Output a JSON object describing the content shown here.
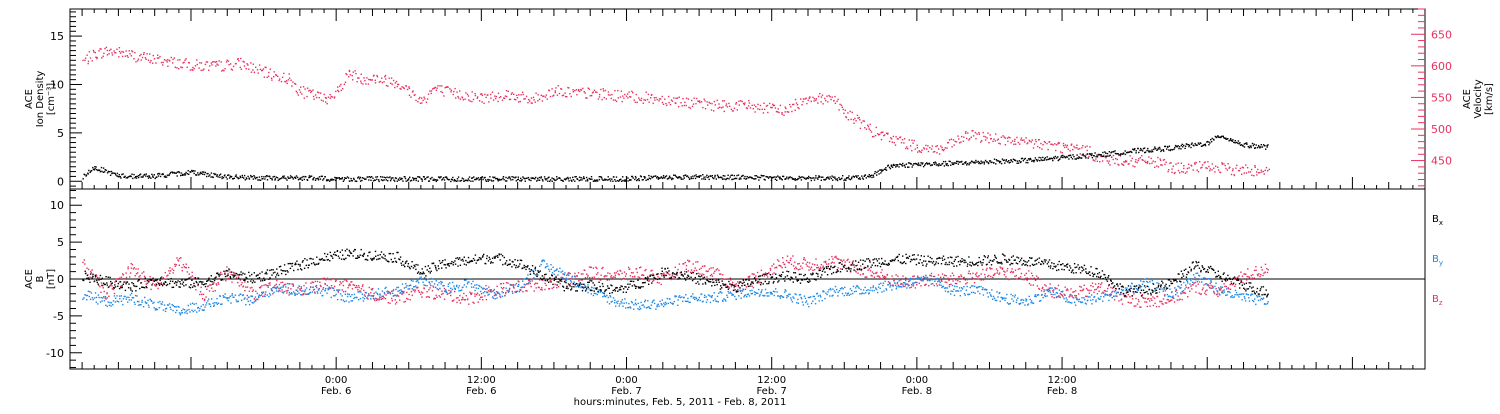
{
  "chart_data": [
    {
      "type": "scatter",
      "panel": "top",
      "ylabel_left": [
        "ACE",
        "Ion Density",
        "[cm⁻³]"
      ],
      "ylabel_right": [
        "ACE",
        "Velocity",
        "[km/s]"
      ],
      "ylim_left": [
        -0.8,
        17.8
      ],
      "yticks_left": [
        0,
        5,
        10,
        15
      ],
      "ylim_right": [
        405,
        690
      ],
      "yticks_right": [
        450,
        500,
        550,
        600,
        650
      ],
      "grid": false,
      "colors": {
        "density": "#000000",
        "velocity": "#e8305f"
      },
      "series": [
        {
          "axis": "left",
          "color": "#000000",
          "points": [
            [
              -21,
              0.5
            ],
            [
              -20,
              1.5
            ],
            [
              -18,
              0.6
            ],
            [
              -15,
              0.6
            ],
            [
              -12,
              1.0
            ],
            [
              -9,
              0.5
            ],
            [
              -6,
              0.4
            ],
            [
              -3,
              0.4
            ],
            [
              0,
              0.3
            ],
            [
              3,
              0.3
            ],
            [
              6,
              0.3
            ],
            [
              9,
              0.3
            ],
            [
              12,
              0.3
            ],
            [
              15,
              0.3
            ],
            [
              18,
              0.3
            ],
            [
              21,
              0.3
            ],
            [
              24,
              0.3
            ],
            [
              27,
              0.5
            ],
            [
              30,
              0.5
            ],
            [
              33,
              0.5
            ],
            [
              36,
              0.4
            ],
            [
              39,
              0.4
            ],
            [
              42,
              0.4
            ],
            [
              44,
              0.5
            ],
            [
              45,
              1.2
            ],
            [
              46,
              1.7
            ],
            [
              48,
              1.8
            ],
            [
              51,
              1.9
            ],
            [
              54,
              2.1
            ],
            [
              57,
              2.2
            ],
            [
              60,
              2.5
            ],
            [
              63,
              2.8
            ],
            [
              66,
              3.2
            ],
            [
              69,
              3.5
            ],
            [
              72,
              4.0
            ],
            [
              73,
              4.8
            ],
            [
              75,
              3.8
            ],
            [
              77,
              3.6
            ]
          ]
        },
        {
          "axis": "right",
          "color": "#e8305f",
          "points": [
            [
              -21,
              608
            ],
            [
              -20,
              620
            ],
            [
              -19,
              624
            ],
            [
              -18,
              622
            ],
            [
              -17,
              618
            ],
            [
              -16,
              614
            ],
            [
              -14,
              608
            ],
            [
              -12,
              602
            ],
            [
              -10,
              600
            ],
            [
              -8,
              605
            ],
            [
              -6,
              590
            ],
            [
              -4,
              580
            ],
            [
              -3,
              560
            ],
            [
              -2,
              555
            ],
            [
              -1,
              548
            ],
            [
              0,
              560
            ],
            [
              1,
              590
            ],
            [
              2,
              580
            ],
            [
              3,
              582
            ],
            [
              4,
              578
            ],
            [
              5,
              575
            ],
            [
              6,
              560
            ],
            [
              7,
              545
            ],
            [
              8,
              565
            ],
            [
              9,
              560
            ],
            [
              10,
              556
            ],
            [
              12,
              550
            ],
            [
              14,
              556
            ],
            [
              15,
              552
            ],
            [
              16,
              546
            ],
            [
              18,
              562
            ],
            [
              20,
              558
            ],
            [
              22,
              556
            ],
            [
              24,
              552
            ],
            [
              26,
              550
            ],
            [
              28,
              546
            ],
            [
              30,
              540
            ],
            [
              32,
              538
            ],
            [
              34,
              538
            ],
            [
              36,
              532
            ],
            [
              37,
              530
            ],
            [
              38,
              540
            ],
            [
              39,
              552
            ],
            [
              40,
              548
            ],
            [
              41,
              552
            ],
            [
              42,
              525
            ],
            [
              43,
              515
            ],
            [
              44,
              500
            ],
            [
              45,
              490
            ],
            [
              46,
              485
            ],
            [
              48,
              472
            ],
            [
              50,
              468
            ],
            [
              52,
              490
            ],
            [
              54,
              488
            ],
            [
              56,
              480
            ],
            [
              58,
              478
            ],
            [
              60,
              472
            ],
            [
              62,
              466
            ],
            [
              63,
              455
            ],
            [
              64,
              450
            ],
            [
              65,
              452
            ],
            [
              66,
              448
            ],
            [
              67,
              452
            ],
            [
              68,
              446
            ],
            [
              69,
              440
            ],
            [
              70,
              438
            ],
            [
              72,
              442
            ],
            [
              74,
              436
            ],
            [
              76,
              436
            ],
            [
              77,
              438
            ]
          ]
        }
      ]
    },
    {
      "type": "scatter",
      "panel": "bottom",
      "ylabel": [
        "ACE",
        "B",
        "[nT]"
      ],
      "ylim": [
        -12.2,
        12.2
      ],
      "yticks": [
        -10,
        -5,
        0,
        5,
        10
      ],
      "zero_line": true,
      "grid": false,
      "series": [
        {
          "legend": "B",
          "sub": "x",
          "color": "#000000",
          "points": [
            [
              -21,
              0.5
            ],
            [
              -19,
              -0.3
            ],
            [
              -17,
              -1.0
            ],
            [
              -15,
              0.0
            ],
            [
              -13,
              -0.6
            ],
            [
              -11,
              -0.3
            ],
            [
              -9,
              0.8
            ],
            [
              -7,
              0.2
            ],
            [
              -5,
              1.0
            ],
            [
              -3,
              2.0
            ],
            [
              -1,
              3.0
            ],
            [
              1,
              3.5
            ],
            [
              3,
              3.3
            ],
            [
              5,
              3.0
            ],
            [
              7,
              1.0
            ],
            [
              9,
              2.2
            ],
            [
              11,
              2.6
            ],
            [
              13,
              3.0
            ],
            [
              15,
              2.2
            ],
            [
              17,
              0.5
            ],
            [
              19,
              -1.0
            ],
            [
              21,
              -0.8
            ],
            [
              23,
              -1.5
            ],
            [
              25,
              -0.5
            ],
            [
              27,
              1.0
            ],
            [
              29,
              0.5
            ],
            [
              31,
              -0.5
            ],
            [
              33,
              -1.0
            ],
            [
              35,
              0.0
            ],
            [
              37,
              0.5
            ],
            [
              39,
              0.0
            ],
            [
              41,
              1.5
            ],
            [
              43,
              2.0
            ],
            [
              45,
              2.5
            ],
            [
              47,
              2.8
            ],
            [
              49,
              2.5
            ],
            [
              51,
              2.5
            ],
            [
              53,
              2.5
            ],
            [
              55,
              2.8
            ],
            [
              57,
              2.5
            ],
            [
              59,
              2.0
            ],
            [
              61,
              1.5
            ],
            [
              63,
              1.0
            ],
            [
              65,
              -1.5
            ],
            [
              67,
              -1.5
            ],
            [
              69,
              -0.5
            ],
            [
              71,
              2.0
            ],
            [
              73,
              0.5
            ],
            [
              75,
              -0.8
            ],
            [
              77,
              -1.8
            ]
          ]
        },
        {
          "legend": "B",
          "sub": "y",
          "color": "#1e88e5",
          "points": [
            [
              -21,
              -2.0
            ],
            [
              -19,
              -3.0
            ],
            [
              -17,
              -2.5
            ],
            [
              -15,
              -3.5
            ],
            [
              -13,
              -4.3
            ],
            [
              -11,
              -3.5
            ],
            [
              -9,
              -2.5
            ],
            [
              -7,
              -2.8
            ],
            [
              -5,
              -1.0
            ],
            [
              -3,
              -1.5
            ],
            [
              -1,
              -1.5
            ],
            [
              1,
              -2.5
            ],
            [
              3,
              -2.0
            ],
            [
              5,
              -1.5
            ],
            [
              7,
              0.0
            ],
            [
              9,
              -1.2
            ],
            [
              11,
              -0.5
            ],
            [
              13,
              -2.0
            ],
            [
              15,
              -1.0
            ],
            [
              17,
              2.0
            ],
            [
              19,
              0.5
            ],
            [
              21,
              -1.5
            ],
            [
              23,
              -3.0
            ],
            [
              25,
              -3.5
            ],
            [
              27,
              -3.2
            ],
            [
              29,
              -2.5
            ],
            [
              31,
              -2.5
            ],
            [
              33,
              -2.0
            ],
            [
              35,
              -1.5
            ],
            [
              37,
              -2.0
            ],
            [
              39,
              -3.0
            ],
            [
              41,
              -1.5
            ],
            [
              43,
              -1.5
            ],
            [
              45,
              -1.0
            ],
            [
              47,
              -0.5
            ],
            [
              49,
              0.0
            ],
            [
              51,
              -1.5
            ],
            [
              53,
              -1.5
            ],
            [
              55,
              -2.5
            ],
            [
              57,
              -3.0
            ],
            [
              59,
              -1.5
            ],
            [
              61,
              -3.0
            ],
            [
              63,
              -2.5
            ],
            [
              65,
              -1.5
            ],
            [
              67,
              -0.5
            ],
            [
              69,
              -2.0
            ],
            [
              71,
              0.5
            ],
            [
              73,
              -1.5
            ],
            [
              75,
              -2.5
            ],
            [
              77,
              -3.0
            ]
          ]
        },
        {
          "legend": "B",
          "sub": "z",
          "color": "#e8305f",
          "points": [
            [
              -21,
              2.0
            ],
            [
              -19,
              -2.0
            ],
            [
              -17,
              1.5
            ],
            [
              -15,
              -1.0
            ],
            [
              -13,
              2.5
            ],
            [
              -11,
              -2.0
            ],
            [
              -9,
              1.0
            ],
            [
              -7,
              -2.0
            ],
            [
              -5,
              -1.0
            ],
            [
              -3,
              -1.5
            ],
            [
              -1,
              -0.5
            ],
            [
              1,
              -1.0
            ],
            [
              3,
              -2.0
            ],
            [
              5,
              -2.5
            ],
            [
              7,
              -1.5
            ],
            [
              9,
              -2.0
            ],
            [
              11,
              -2.5
            ],
            [
              13,
              -1.5
            ],
            [
              15,
              -1.0
            ],
            [
              17,
              -0.5
            ],
            [
              19,
              0.0
            ],
            [
              21,
              1.0
            ],
            [
              23,
              0.5
            ],
            [
              25,
              1.0
            ],
            [
              27,
              0.0
            ],
            [
              29,
              2.0
            ],
            [
              31,
              1.0
            ],
            [
              33,
              -1.0
            ],
            [
              35,
              0.5
            ],
            [
              37,
              2.5
            ],
            [
              39,
              2.0
            ],
            [
              41,
              2.5
            ],
            [
              43,
              1.5
            ],
            [
              45,
              0.5
            ],
            [
              47,
              -0.5
            ],
            [
              49,
              0.0
            ],
            [
              51,
              0.0
            ],
            [
              53,
              0.5
            ],
            [
              55,
              1.0
            ],
            [
              57,
              0.5
            ],
            [
              59,
              -1.5
            ],
            [
              61,
              -2.0
            ],
            [
              63,
              -1.0
            ],
            [
              65,
              -2.5
            ],
            [
              67,
              -3.0
            ],
            [
              69,
              -2.5
            ],
            [
              71,
              -1.0
            ],
            [
              73,
              -1.5
            ],
            [
              75,
              0.5
            ],
            [
              77,
              1.5
            ]
          ]
        }
      ]
    },
    {
      "type": "x-axis",
      "xlabel": "hours:minutes, Feb.  5, 2011 - Feb.  8, 2011",
      "xlim_hours_from_feb6_0000": [
        -22,
        90
      ],
      "major_ticks": [
        {
          "hour": 0,
          "time": "0:00",
          "date": "Feb. 6"
        },
        {
          "hour": 12,
          "time": "12:00",
          "date": "Feb. 6"
        },
        {
          "hour": 24,
          "time": "0:00",
          "date": "Feb. 7"
        },
        {
          "hour": 36,
          "time": "12:00",
          "date": "Feb. 7"
        },
        {
          "hour": 48,
          "time": "0:00",
          "date": "Feb. 8"
        },
        {
          "hour": 60,
          "time": "12:00",
          "date": "Feb. 8"
        }
      ]
    }
  ]
}
